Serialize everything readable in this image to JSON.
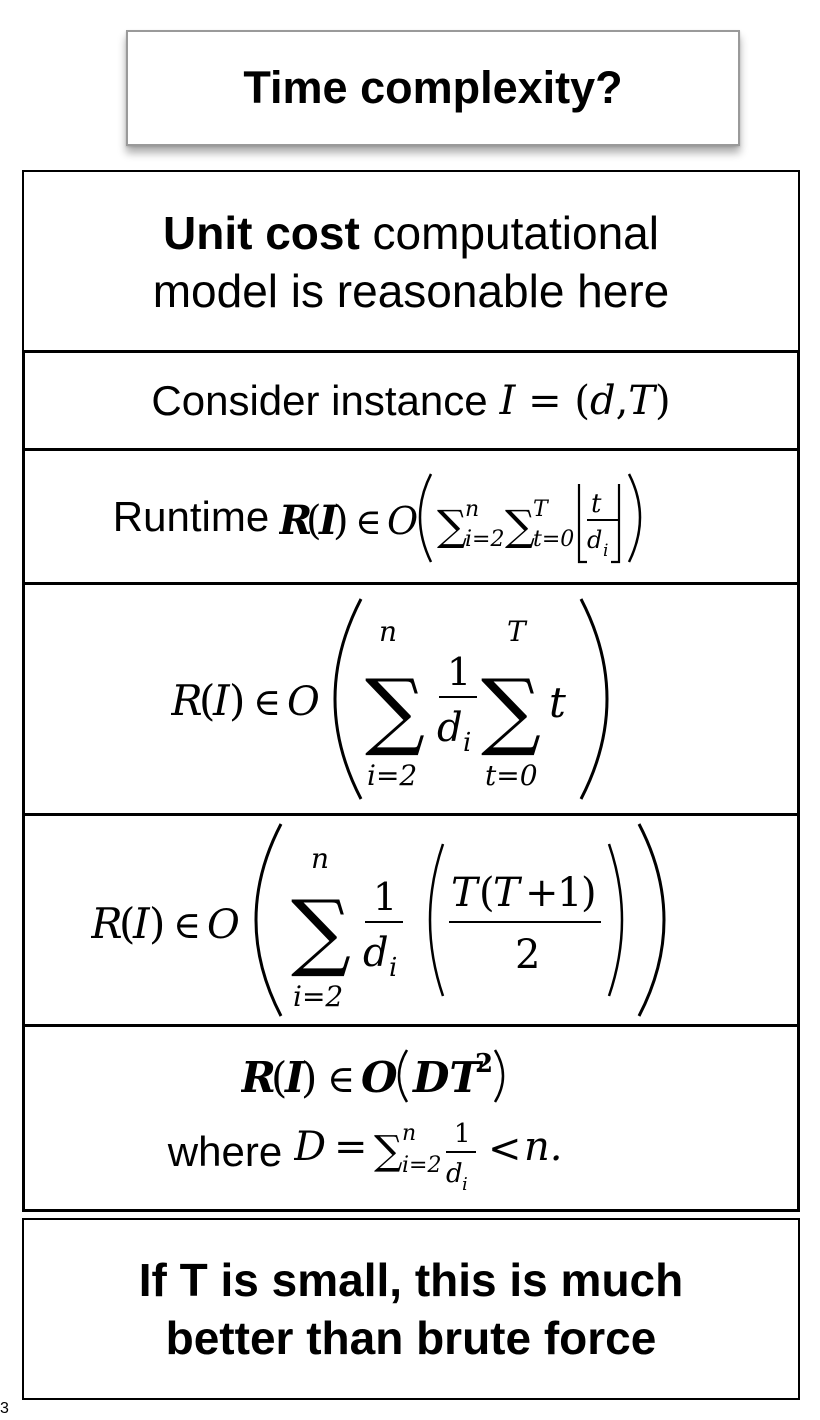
{
  "title": "Time complexity?",
  "model_box": {
    "bold": "Unit cost",
    "line1_rest": " computational",
    "line2": "model is reasonable here"
  },
  "instance_box": {
    "text": "Consider instance"
  },
  "runtime_box": {
    "label": "Runtime"
  },
  "result_box": {
    "where_label": "where"
  },
  "conclusion_box": {
    "line1": "If T is small, this is much",
    "line2": "better than brute force"
  },
  "slide_number": "3"
}
